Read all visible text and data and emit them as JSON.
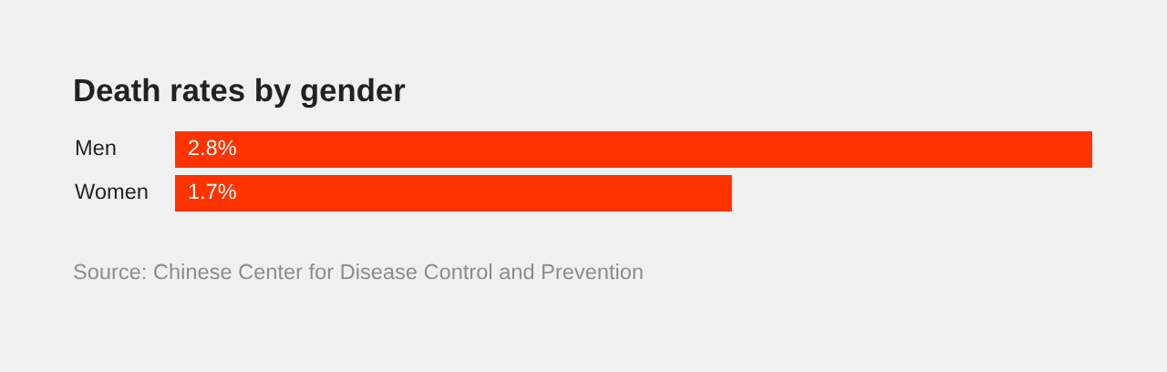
{
  "chart_data": {
    "type": "bar",
    "orientation": "horizontal",
    "title": "Death rates by gender",
    "categories": [
      "Men",
      "Women"
    ],
    "values": [
      2.8,
      1.7
    ],
    "value_labels": [
      "2.8%",
      "1.7%"
    ],
    "color": "#ff3300",
    "xlim": [
      0,
      2.8
    ],
    "tick_labels": false,
    "annotations": [
      "Source: Chinese Center for Disease Control and Prevention"
    ]
  }
}
